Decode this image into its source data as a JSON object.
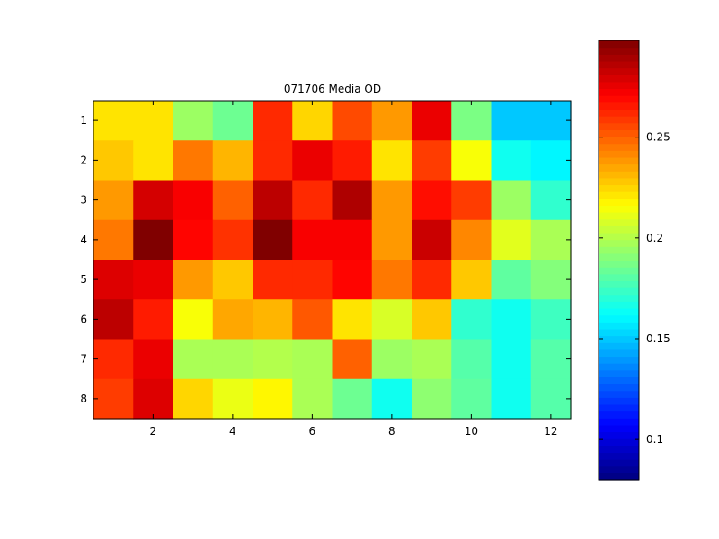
{
  "chart_data": {
    "type": "heatmap",
    "title": "071706 Media OD",
    "xlabel": "",
    "ylabel": "",
    "rows": 8,
    "cols": 12,
    "x_ticks": [
      2,
      4,
      6,
      8,
      10,
      12
    ],
    "y_ticks": [
      1,
      2,
      3,
      4,
      5,
      6,
      7,
      8
    ],
    "values": [
      [
        0.222,
        0.222,
        0.195,
        0.185,
        0.262,
        0.225,
        0.255,
        0.238,
        0.275,
        0.188,
        0.15,
        0.15
      ],
      [
        0.228,
        0.222,
        0.245,
        0.232,
        0.262,
        0.275,
        0.265,
        0.222,
        0.258,
        0.215,
        0.165,
        0.16
      ],
      [
        0.238,
        0.28,
        0.272,
        0.25,
        0.285,
        0.262,
        0.288,
        0.238,
        0.268,
        0.258,
        0.195,
        0.172
      ],
      [
        0.245,
        0.298,
        0.27,
        0.26,
        0.298,
        0.272,
        0.272,
        0.238,
        0.282,
        0.242,
        0.21,
        0.198
      ],
      [
        0.278,
        0.275,
        0.238,
        0.228,
        0.262,
        0.262,
        0.27,
        0.245,
        0.262,
        0.228,
        0.182,
        0.19
      ],
      [
        0.285,
        0.265,
        0.215,
        0.235,
        0.232,
        0.252,
        0.222,
        0.208,
        0.228,
        0.172,
        0.165,
        0.175
      ],
      [
        0.262,
        0.275,
        0.198,
        0.198,
        0.2,
        0.198,
        0.25,
        0.195,
        0.198,
        0.18,
        0.165,
        0.18
      ],
      [
        0.258,
        0.278,
        0.225,
        0.212,
        0.218,
        0.198,
        0.185,
        0.165,
        0.192,
        0.182,
        0.165,
        0.18
      ]
    ],
    "clim": [
      0.08,
      0.298
    ],
    "colormap": "jet",
    "colorbar_ticks": [
      0.1,
      0.15,
      0.2,
      0.25
    ],
    "colorbar_tick_labels": [
      "0.1",
      "0.15",
      "0.2",
      "0.25"
    ],
    "colorbar_position": "right",
    "grid": false
  }
}
